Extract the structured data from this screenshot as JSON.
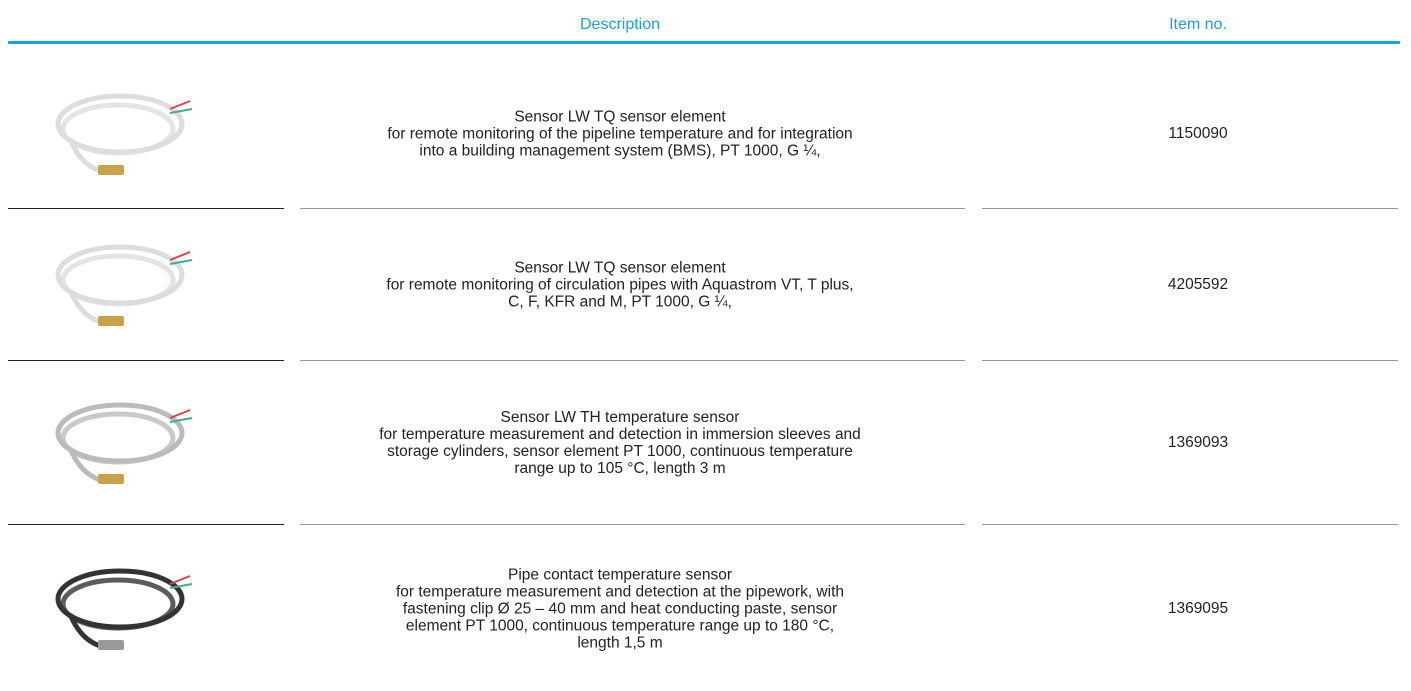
{
  "header": {
    "columns": [
      "Description",
      "Item no."
    ]
  },
  "table": {
    "rows": [
      {
        "description": [
          "Sensor LW TQ sensor element",
          "for remote monitoring of the pipeline temperature and for integration",
          "into a building management system (BMS), PT 1000, G ¼,"
        ],
        "item": "1150090"
      },
      {
        "description": [
          "Sensor LW TQ sensor element",
          "for remote monitoring of circulation pipes with Aquastrom VT, T plus,",
          "C, F, KFR and M, PT 1000, G ¼,"
        ],
        "item": "4205592"
      },
      {
        "description": [
          "Sensor LW TH temperature sensor",
          "for temperature measurement and detection in immersion sleeves and",
          "storage cylinders, sensor element PT 1000, continuous temperature",
          "range up to 105 °C, length 3 m"
        ],
        "item": "1369093"
      },
      {
        "description": [
          "Pipe contact temperature sensor",
          "for temperature measurement and detection at the pipework, with",
          "fastening clip Ø 25 – 40 mm and heat conducting paste, sensor",
          "element PT 1000, continuous temperature range up to 180 °C,",
          "length 1,5 m"
        ],
        "item": "1369095"
      }
    ]
  }
}
